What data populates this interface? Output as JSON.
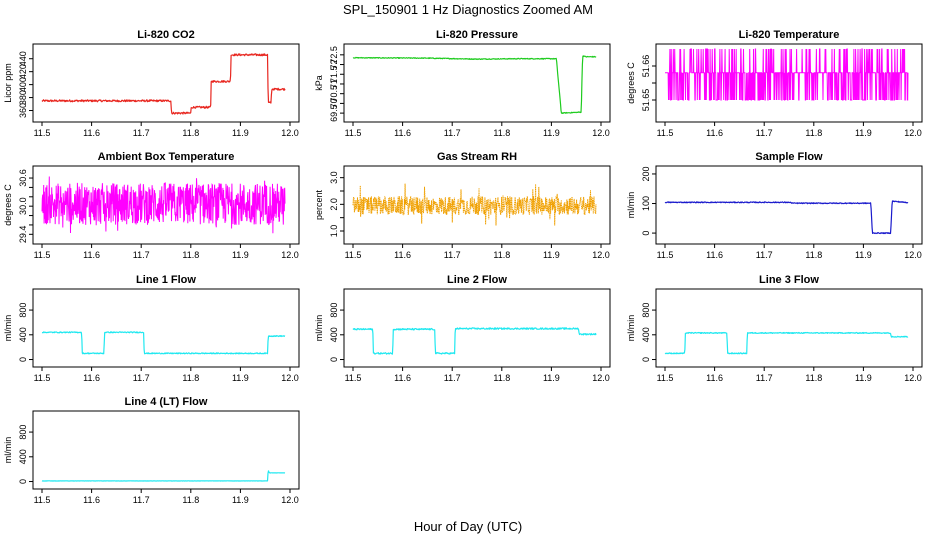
{
  "figure": {
    "title": "SPL_150901  1 Hz Diagnostics Zoomed AM",
    "xlabel": "Hour of Day (UTC)"
  },
  "chart_data": [
    {
      "type": "line",
      "title": "Li-820 CO2",
      "ylabel": "Licor ppm",
      "color": "#e8261f",
      "xlim": [
        11.5,
        12.0
      ],
      "ylim": [
        350,
        455
      ],
      "xticks": [
        11.5,
        11.6,
        11.7,
        11.8,
        11.9,
        12.0
      ],
      "yticks": [
        360,
        380,
        400,
        420,
        440
      ],
      "noise": 1.5,
      "series": [
        {
          "x": [
            11.5,
            11.76,
            11.761,
            11.8,
            11.801,
            11.84,
            11.841,
            11.88,
            11.881,
            11.955,
            11.956,
            11.962,
            11.963,
            11.99
          ],
          "y": [
            375,
            375,
            356,
            356,
            365,
            365,
            405,
            405,
            446,
            446,
            372,
            372,
            393,
            393
          ]
        }
      ]
    },
    {
      "type": "line",
      "title": "Li-820 Pressure",
      "ylabel": "kPa",
      "color": "#1ecb1e",
      "xlim": [
        11.5,
        12.0
      ],
      "ylim": [
        69.3,
        72.8
      ],
      "xticks": [
        11.5,
        11.6,
        11.7,
        11.8,
        11.9,
        12.0
      ],
      "yticks": [
        69.5,
        70.0,
        70.5,
        71.0,
        71.5,
        72.0,
        72.5
      ],
      "noise": 0.02,
      "series": [
        {
          "x": [
            11.5,
            11.65,
            11.75,
            11.83,
            11.91,
            11.92,
            11.96,
            11.963,
            11.97,
            11.99
          ],
          "y": [
            72.35,
            72.33,
            72.28,
            72.3,
            72.3,
            69.5,
            69.55,
            72.45,
            72.4,
            72.4
          ]
        }
      ]
    },
    {
      "type": "line",
      "title": "Li-820 Temperature",
      "ylabel": "degrees C",
      "color": "#ff00ff",
      "style": "toggle",
      "xlim": [
        11.5,
        12.0
      ],
      "ylim": [
        51.645,
        51.665
      ],
      "xticks": [
        11.5,
        11.6,
        11.7,
        11.8,
        11.9,
        12.0
      ],
      "yticks": [
        51.65,
        51.655,
        51.66
      ],
      "ytick_labels": [
        "51.65",
        "",
        "51.66"
      ],
      "levels": [
        51.65,
        51.658,
        51.665
      ],
      "series": [
        {
          "x": [
            11.5,
            11.99
          ],
          "y": [
            51.658,
            51.658
          ]
        }
      ]
    },
    {
      "type": "line",
      "title": "Ambient Box Temperature",
      "ylabel": "degrees C",
      "color": "#ff00ff",
      "style": "band",
      "xlim": [
        11.5,
        12.0
      ],
      "ylim": [
        29.3,
        30.75
      ],
      "xticks": [
        11.5,
        11.6,
        11.7,
        11.8,
        11.9,
        12.0
      ],
      "yticks": [
        29.4,
        29.6,
        29.8,
        30.0,
        30.2,
        30.4,
        30.6
      ],
      "ytick_labels": [
        "29.4",
        "",
        "",
        "30.0",
        "",
        "",
        "30.6"
      ],
      "band": [
        29.6,
        30.5
      ],
      "spike": [
        29.4,
        30.65
      ],
      "series": [
        {
          "x": [
            11.5,
            11.99
          ],
          "y": [
            30.05,
            30.05
          ]
        }
      ]
    },
    {
      "type": "line",
      "title": "Gas Stream RH",
      "ylabel": "percent",
      "color": "#f0a000",
      "style": "band-dots",
      "xlim": [
        11.5,
        12.0
      ],
      "ylim": [
        0.7,
        3.25
      ],
      "xticks": [
        11.5,
        11.6,
        11.7,
        11.8,
        11.9,
        12.0
      ],
      "yticks": [
        1.0,
        1.5,
        2.0,
        2.5,
        3.0
      ],
      "ytick_labels": [
        "1.0",
        "",
        "2.0",
        "",
        "3.0"
      ],
      "band": [
        1.6,
        2.3
      ],
      "spike": [
        1.2,
        2.8
      ],
      "series": [
        {
          "x": [
            11.5,
            11.99
          ],
          "y": [
            1.95,
            1.95
          ]
        }
      ]
    },
    {
      "type": "line",
      "title": "Sample Flow",
      "ylabel": "ml/min",
      "color": "#1a1acc",
      "xlim": [
        11.5,
        12.0
      ],
      "ylim": [
        -20,
        210
      ],
      "xticks": [
        11.5,
        11.6,
        11.7,
        11.8,
        11.9,
        12.0
      ],
      "yticks": [
        0,
        100,
        200
      ],
      "noise": 1.5,
      "series": [
        {
          "x": [
            11.5,
            11.75,
            11.76,
            11.915,
            11.918,
            11.955,
            11.958,
            11.99
          ],
          "y": [
            104,
            104,
            101,
            101,
            0,
            0,
            108,
            103
          ]
        }
      ]
    },
    {
      "type": "line",
      "title": "Line 1 Flow",
      "ylabel": "ml/min",
      "color": "#20e8f0",
      "xlim": [
        11.5,
        12.0
      ],
      "ylim": [
        -40,
        1060
      ],
      "xticks": [
        11.5,
        11.6,
        11.7,
        11.8,
        11.9,
        12.0
      ],
      "yticks": [
        0,
        200,
        400,
        600,
        800,
        1000
      ],
      "ytick_labels": [
        "0",
        "400",
        "800"
      ],
      "ytick_values": [
        0,
        400,
        800
      ],
      "noise": 8,
      "series": [
        {
          "x": [
            11.5,
            11.58,
            11.581,
            11.625,
            11.626,
            11.705,
            11.706,
            11.955,
            11.956,
            11.99
          ],
          "y": [
            440,
            440,
            100,
            100,
            440,
            440,
            100,
            100,
            380,
            380
          ]
        }
      ]
    },
    {
      "type": "line",
      "title": "Line 2 Flow",
      "ylabel": "ml/min",
      "color": "#20e8f0",
      "xlim": [
        11.5,
        12.0
      ],
      "ylim": [
        -40,
        1060
      ],
      "xticks": [
        11.5,
        11.6,
        11.7,
        11.8,
        11.9,
        12.0
      ],
      "yticks": [
        0,
        400,
        800
      ],
      "noise": 12,
      "series": [
        {
          "x": [
            11.5,
            11.54,
            11.541,
            11.58,
            11.581,
            11.665,
            11.666,
            11.705,
            11.706,
            11.955,
            11.956,
            11.99
          ],
          "y": [
            490,
            490,
            100,
            100,
            490,
            490,
            100,
            100,
            500,
            500,
            410,
            410
          ]
        }
      ]
    },
    {
      "type": "line",
      "title": "Line 3 Flow",
      "ylabel": "ml/min",
      "color": "#20e8f0",
      "xlim": [
        11.5,
        12.0
      ],
      "ylim": [
        -40,
        1060
      ],
      "xticks": [
        11.5,
        11.6,
        11.7,
        11.8,
        11.9,
        12.0
      ],
      "yticks": [
        0,
        400,
        800
      ],
      "noise": 8,
      "series": [
        {
          "x": [
            11.5,
            11.54,
            11.541,
            11.625,
            11.626,
            11.665,
            11.666,
            11.955,
            11.956,
            11.99
          ],
          "y": [
            100,
            100,
            430,
            430,
            100,
            100,
            430,
            430,
            370,
            370
          ]
        }
      ]
    },
    {
      "type": "line",
      "title": "Line 4 (LT) Flow",
      "ylabel": "ml/min",
      "color": "#20e8f0",
      "xlim": [
        11.5,
        12.0
      ],
      "ylim": [
        -40,
        1060
      ],
      "xticks": [
        11.5,
        11.6,
        11.7,
        11.8,
        11.9,
        12.0
      ],
      "yticks": [
        0,
        400,
        800
      ],
      "noise": 2,
      "series": [
        {
          "x": [
            11.5,
            11.955,
            11.956,
            11.958,
            11.99
          ],
          "y": [
            10,
            10,
            190,
            140,
            140
          ]
        }
      ]
    }
  ]
}
